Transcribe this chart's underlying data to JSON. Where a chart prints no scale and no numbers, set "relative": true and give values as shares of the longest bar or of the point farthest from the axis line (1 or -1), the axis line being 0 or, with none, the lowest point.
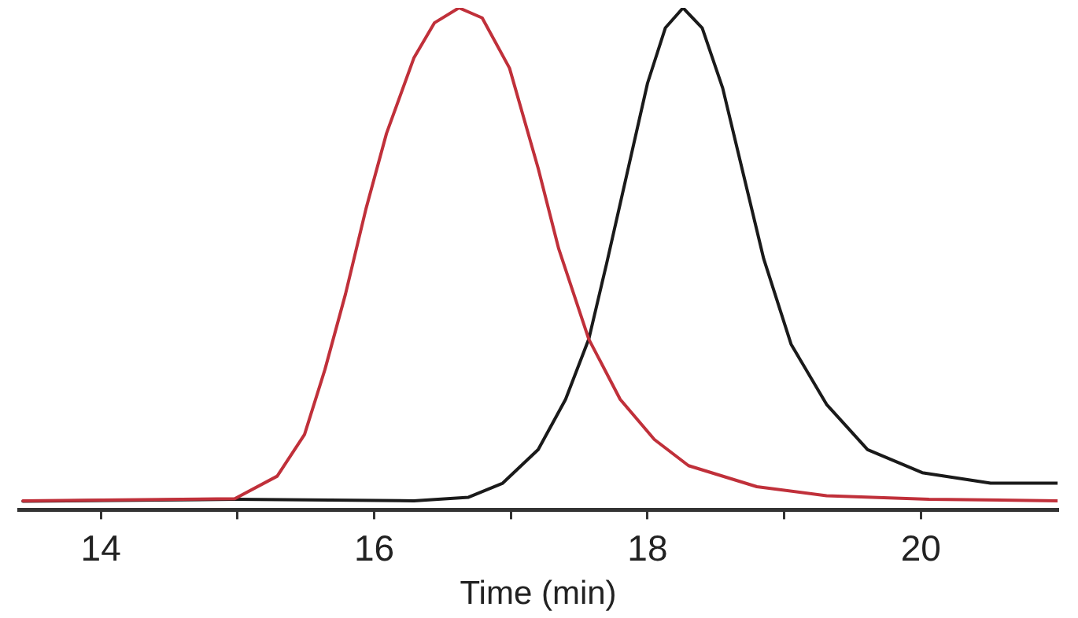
{
  "chart_data": {
    "type": "line",
    "xlabel": "Time (min)",
    "relative": true,
    "xlim": [
      13.4,
      21
    ],
    "xticks": [
      14,
      {
        "value": 15,
        "label": null
      },
      16,
      {
        "value": 17,
        "label": null
      },
      18,
      {
        "value": 19,
        "label": null
      },
      20
    ],
    "grid": false,
    "legend": false,
    "marker": "none",
    "line_style": "solid",
    "series": [
      {
        "color": "#c0303a",
        "x": [
          13.43,
          14.98,
          15.29,
          15.49,
          15.64,
          15.79,
          15.94,
          16.09,
          16.29,
          16.44,
          16.62,
          16.79,
          16.99,
          17.2,
          17.35,
          17.57,
          17.8,
          18.05,
          18.3,
          18.8,
          19.31,
          20.06,
          21.0
        ],
        "values": [
          0.018,
          0.022,
          0.067,
          0.15,
          0.28,
          0.43,
          0.6,
          0.75,
          0.9,
          0.97,
          1.0,
          0.98,
          0.88,
          0.68,
          0.52,
          0.34,
          0.22,
          0.14,
          0.088,
          0.046,
          0.028,
          0.021,
          0.018
        ]
      },
      {
        "color": "#1a1a1a",
        "x": [
          13.43,
          14.98,
          16.29,
          16.69,
          16.94,
          17.2,
          17.4,
          17.57,
          17.7,
          17.85,
          18.0,
          18.13,
          18.26,
          18.4,
          18.55,
          18.7,
          18.85,
          19.05,
          19.31,
          19.61,
          20.01,
          20.51,
          21.0
        ],
        "values": [
          0.017,
          0.021,
          0.018,
          0.025,
          0.053,
          0.12,
          0.22,
          0.34,
          0.49,
          0.67,
          0.85,
          0.96,
          1.0,
          0.96,
          0.84,
          0.67,
          0.5,
          0.33,
          0.21,
          0.12,
          0.074,
          0.053,
          0.053
        ]
      }
    ]
  }
}
